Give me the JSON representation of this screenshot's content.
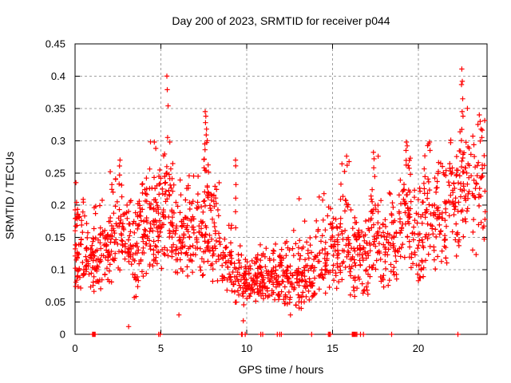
{
  "window": {
    "background": "#ffffff"
  },
  "chart_data": {
    "type": "scatter",
    "title": "Day 200 of 2023, SRMTID for receiver p044",
    "xlabel": "GPS time / hours",
    "ylabel": "SRMTID / TECUs",
    "xlim": [
      0,
      24
    ],
    "ylim": [
      0,
      0.45
    ],
    "xticks": [
      0,
      5,
      10,
      15,
      20
    ],
    "xtick_labels": [
      "0",
      "5",
      "10",
      "15",
      "20"
    ],
    "yticks": [
      0,
      0.05,
      0.1,
      0.15,
      0.2,
      0.25,
      0.3,
      0.35,
      0.4,
      0.45
    ],
    "ytick_labels": [
      "0",
      "0.05",
      "0.1",
      "0.15",
      "0.2",
      "0.25",
      "0.3",
      "0.35",
      "0.4",
      "0.45"
    ],
    "grid": true,
    "legend": "none",
    "marker": {
      "shape": "plus",
      "size": 7,
      "color": "#ff0000"
    },
    "grid_color": "#a0a0a0",
    "frame_color": "#000000",
    "series_name": "SRMTID",
    "seed": 20230744,
    "points_notable": [
      [
        0.05,
        0.235
      ],
      [
        2.05,
        0.252
      ],
      [
        2.62,
        0.27
      ],
      [
        3.12,
        0.012
      ],
      [
        4.62,
        0.298
      ],
      [
        4.7,
        0.288
      ],
      [
        5.35,
        0.4
      ],
      [
        5.37,
        0.379
      ],
      [
        5.42,
        0.354
      ],
      [
        5.39,
        0.305
      ],
      [
        5.52,
        0.298
      ],
      [
        6.05,
        0.03
      ],
      [
        7.56,
        0.295
      ],
      [
        7.58,
        0.345
      ],
      [
        7.6,
        0.328
      ],
      [
        7.62,
        0.338
      ],
      [
        7.64,
        0.309
      ],
      [
        7.66,
        0.318
      ],
      [
        7.7,
        0.3
      ],
      [
        9.35,
        0.27
      ],
      [
        9.36,
        0.261
      ],
      [
        9.37,
        0.232
      ],
      [
        9.36,
        0.211
      ],
      [
        9.35,
        0.19
      ],
      [
        9.36,
        0.165
      ],
      [
        9.8,
        0.021
      ],
      [
        12.55,
        0.03
      ],
      [
        13.05,
        0.21
      ],
      [
        14.5,
        0.218
      ],
      [
        15.82,
        0.276
      ],
      [
        15.85,
        0.262
      ],
      [
        17.38,
        0.282
      ],
      [
        17.42,
        0.272
      ],
      [
        17.4,
        0.258
      ],
      [
        19.28,
        0.285
      ],
      [
        19.3,
        0.298
      ],
      [
        19.35,
        0.292
      ],
      [
        20.65,
        0.298
      ],
      [
        20.68,
        0.285
      ],
      [
        22.51,
        0.387
      ],
      [
        22.53,
        0.411
      ],
      [
        22.55,
        0.345
      ],
      [
        22.56,
        0.392
      ],
      [
        22.58,
        0.365
      ],
      [
        22.6,
        0.338
      ],
      [
        23.55,
        0.34
      ],
      [
        23.6,
        0.33
      ],
      [
        23.65,
        0.318
      ],
      [
        23.7,
        0.305
      ]
    ],
    "points_on_zero_line": [
      1.02,
      1.05,
      1.08,
      1.11,
      1.14,
      1.17,
      4.87,
      4.96,
      9.7,
      9.74,
      9.91,
      10.82,
      10.93,
      11.78,
      11.92,
      12.02,
      13.78,
      14.76,
      14.82,
      14.88,
      16.15,
      16.2,
      16.25,
      16.3,
      16.36,
      16.42,
      16.63,
      16.8,
      18.44,
      22.3
    ],
    "density_clusters": [
      {
        "x0": 0.0,
        "x1": 0.15,
        "n": 22,
        "y_mean": 0.15,
        "y_sd": 0.05,
        "y_min": 0.07,
        "y_max": 0.235
      },
      {
        "x0": 0.1,
        "x1": 0.7,
        "n": 45,
        "y_mean": 0.13,
        "y_sd": 0.035,
        "y_min": 0.07,
        "y_max": 0.22
      },
      {
        "x0": 0.7,
        "x1": 1.3,
        "n": 45,
        "y_mean": 0.12,
        "y_sd": 0.035,
        "y_min": 0.06,
        "y_max": 0.2
      },
      {
        "x0": 1.3,
        "x1": 2.0,
        "n": 50,
        "y_mean": 0.125,
        "y_sd": 0.035,
        "y_min": 0.07,
        "y_max": 0.21
      },
      {
        "x0": 2.0,
        "x1": 2.5,
        "n": 35,
        "y_mean": 0.14,
        "y_sd": 0.04,
        "y_min": 0.08,
        "y_max": 0.245
      },
      {
        "x0": 2.5,
        "x1": 2.75,
        "n": 18,
        "y_mean": 0.17,
        "y_sd": 0.05,
        "y_min": 0.09,
        "y_max": 0.27
      },
      {
        "x0": 2.75,
        "x1": 3.3,
        "n": 40,
        "y_mean": 0.14,
        "y_sd": 0.04,
        "y_min": 0.08,
        "y_max": 0.24
      },
      {
        "x0": 3.3,
        "x1": 3.7,
        "n": 30,
        "y_mean": 0.13,
        "y_sd": 0.045,
        "y_min": 0.05,
        "y_max": 0.23
      },
      {
        "x0": 3.7,
        "x1": 4.3,
        "n": 45,
        "y_mean": 0.16,
        "y_sd": 0.045,
        "y_min": 0.09,
        "y_max": 0.27
      },
      {
        "x0": 4.3,
        "x1": 4.8,
        "n": 45,
        "y_mean": 0.17,
        "y_sd": 0.05,
        "y_min": 0.09,
        "y_max": 0.3
      },
      {
        "x0": 4.8,
        "x1": 5.2,
        "n": 35,
        "y_mean": 0.16,
        "y_sd": 0.045,
        "y_min": 0.1,
        "y_max": 0.28
      },
      {
        "x0": 5.2,
        "x1": 5.7,
        "n": 45,
        "y_mean": 0.2,
        "y_sd": 0.05,
        "y_min": 0.12,
        "y_max": 0.32
      },
      {
        "x0": 5.7,
        "x1": 6.3,
        "n": 40,
        "y_mean": 0.15,
        "y_sd": 0.04,
        "y_min": 0.09,
        "y_max": 0.25
      },
      {
        "x0": 6.3,
        "x1": 6.8,
        "n": 35,
        "y_mean": 0.15,
        "y_sd": 0.045,
        "y_min": 0.09,
        "y_max": 0.26
      },
      {
        "x0": 6.8,
        "x1": 7.5,
        "n": 45,
        "y_mean": 0.15,
        "y_sd": 0.045,
        "y_min": 0.09,
        "y_max": 0.27
      },
      {
        "x0": 7.5,
        "x1": 7.9,
        "n": 40,
        "y_mean": 0.19,
        "y_sd": 0.055,
        "y_min": 0.11,
        "y_max": 0.3
      },
      {
        "x0": 7.9,
        "x1": 8.5,
        "n": 40,
        "y_mean": 0.15,
        "y_sd": 0.045,
        "y_min": 0.08,
        "y_max": 0.25
      },
      {
        "x0": 8.5,
        "x1": 9.2,
        "n": 45,
        "y_mean": 0.11,
        "y_sd": 0.03,
        "y_min": 0.06,
        "y_max": 0.17
      },
      {
        "x0": 9.2,
        "x1": 9.9,
        "n": 40,
        "y_mean": 0.085,
        "y_sd": 0.025,
        "y_min": 0.045,
        "y_max": 0.14
      },
      {
        "x0": 9.9,
        "x1": 10.6,
        "n": 50,
        "y_mean": 0.085,
        "y_sd": 0.022,
        "y_min": 0.05,
        "y_max": 0.13
      },
      {
        "x0": 10.6,
        "x1": 11.3,
        "n": 55,
        "y_mean": 0.09,
        "y_sd": 0.025,
        "y_min": 0.055,
        "y_max": 0.14
      },
      {
        "x0": 11.3,
        "x1": 12.0,
        "n": 50,
        "y_mean": 0.09,
        "y_sd": 0.025,
        "y_min": 0.05,
        "y_max": 0.14
      },
      {
        "x0": 12.0,
        "x1": 12.7,
        "n": 50,
        "y_mean": 0.085,
        "y_sd": 0.028,
        "y_min": 0.045,
        "y_max": 0.16
      },
      {
        "x0": 12.7,
        "x1": 13.4,
        "n": 50,
        "y_mean": 0.09,
        "y_sd": 0.035,
        "y_min": 0.04,
        "y_max": 0.185
      },
      {
        "x0": 13.4,
        "x1": 14.0,
        "n": 40,
        "y_mean": 0.09,
        "y_sd": 0.03,
        "y_min": 0.05,
        "y_max": 0.16
      },
      {
        "x0": 14.0,
        "x1": 14.6,
        "n": 35,
        "y_mean": 0.12,
        "y_sd": 0.04,
        "y_min": 0.06,
        "y_max": 0.215
      },
      {
        "x0": 14.6,
        "x1": 15.4,
        "n": 50,
        "y_mean": 0.12,
        "y_sd": 0.035,
        "y_min": 0.07,
        "y_max": 0.2
      },
      {
        "x0": 15.4,
        "x1": 16.0,
        "n": 40,
        "y_mean": 0.14,
        "y_sd": 0.045,
        "y_min": 0.08,
        "y_max": 0.275
      },
      {
        "x0": 16.0,
        "x1": 16.6,
        "n": 45,
        "y_mean": 0.12,
        "y_sd": 0.035,
        "y_min": 0.05,
        "y_max": 0.2
      },
      {
        "x0": 16.6,
        "x1": 17.2,
        "n": 40,
        "y_mean": 0.13,
        "y_sd": 0.04,
        "y_min": 0.06,
        "y_max": 0.22
      },
      {
        "x0": 17.2,
        "x1": 17.7,
        "n": 35,
        "y_mean": 0.16,
        "y_sd": 0.05,
        "y_min": 0.09,
        "y_max": 0.285
      },
      {
        "x0": 17.7,
        "x1": 18.4,
        "n": 40,
        "y_mean": 0.13,
        "y_sd": 0.04,
        "y_min": 0.07,
        "y_max": 0.22
      },
      {
        "x0": 18.4,
        "x1": 19.1,
        "n": 45,
        "y_mean": 0.15,
        "y_sd": 0.04,
        "y_min": 0.08,
        "y_max": 0.24
      },
      {
        "x0": 19.1,
        "x1": 19.6,
        "n": 40,
        "y_mean": 0.19,
        "y_sd": 0.05,
        "y_min": 0.1,
        "y_max": 0.3
      },
      {
        "x0": 19.6,
        "x1": 20.3,
        "n": 45,
        "y_mean": 0.15,
        "y_sd": 0.04,
        "y_min": 0.08,
        "y_max": 0.24
      },
      {
        "x0": 20.3,
        "x1": 21.0,
        "n": 45,
        "y_mean": 0.18,
        "y_sd": 0.05,
        "y_min": 0.1,
        "y_max": 0.3
      },
      {
        "x0": 21.0,
        "x1": 21.8,
        "n": 50,
        "y_mean": 0.18,
        "y_sd": 0.05,
        "y_min": 0.1,
        "y_max": 0.29
      },
      {
        "x0": 21.8,
        "x1": 22.4,
        "n": 45,
        "y_mean": 0.22,
        "y_sd": 0.05,
        "y_min": 0.12,
        "y_max": 0.31
      },
      {
        "x0": 22.4,
        "x1": 22.9,
        "n": 40,
        "y_mean": 0.26,
        "y_sd": 0.05,
        "y_min": 0.15,
        "y_max": 0.355
      },
      {
        "x0": 22.9,
        "x1": 23.9,
        "n": 50,
        "y_mean": 0.22,
        "y_sd": 0.055,
        "y_min": 0.12,
        "y_max": 0.345
      }
    ]
  }
}
